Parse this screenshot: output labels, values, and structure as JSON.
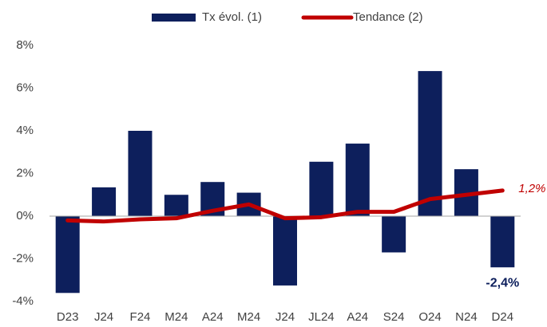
{
  "chart_data": {
    "type": "bar-line",
    "categories": [
      "D23",
      "J24",
      "F24",
      "M24",
      "A24",
      "M24",
      "J24",
      "JL24",
      "A24",
      "S24",
      "O24",
      "N24",
      "D24"
    ],
    "series": [
      {
        "name": "Tx évol. (1)",
        "type": "bar",
        "color": "#0d1f5c",
        "values": [
          -3.6,
          1.35,
          4.0,
          1.0,
          1.6,
          1.1,
          -3.25,
          2.55,
          3.4,
          -1.7,
          6.8,
          2.2,
          -2.4
        ],
        "value_labels": [
          null,
          null,
          null,
          null,
          null,
          null,
          null,
          null,
          null,
          null,
          null,
          null,
          "-2,4%"
        ]
      },
      {
        "name": "Tendance (2)",
        "type": "line",
        "color": "#c00000",
        "values": [
          -0.2,
          -0.25,
          -0.15,
          -0.1,
          0.25,
          0.55,
          -0.1,
          -0.05,
          0.2,
          0.2,
          0.8,
          1.0,
          1.2
        ],
        "value_labels": [
          null,
          null,
          null,
          null,
          null,
          null,
          null,
          null,
          null,
          null,
          null,
          null,
          "1,2%"
        ]
      }
    ],
    "ylim": [
      -4,
      8
    ],
    "yticks": [
      {
        "value": -4,
        "label": "-4%"
      },
      {
        "value": -2,
        "label": "-2%"
      },
      {
        "value": 0,
        "label": "0%"
      },
      {
        "value": 2,
        "label": "2%"
      },
      {
        "value": 4,
        "label": "4%"
      },
      {
        "value": 6,
        "label": "6%"
      },
      {
        "value": 8,
        "label": "8%"
      }
    ],
    "grid": false,
    "legend": "top"
  }
}
